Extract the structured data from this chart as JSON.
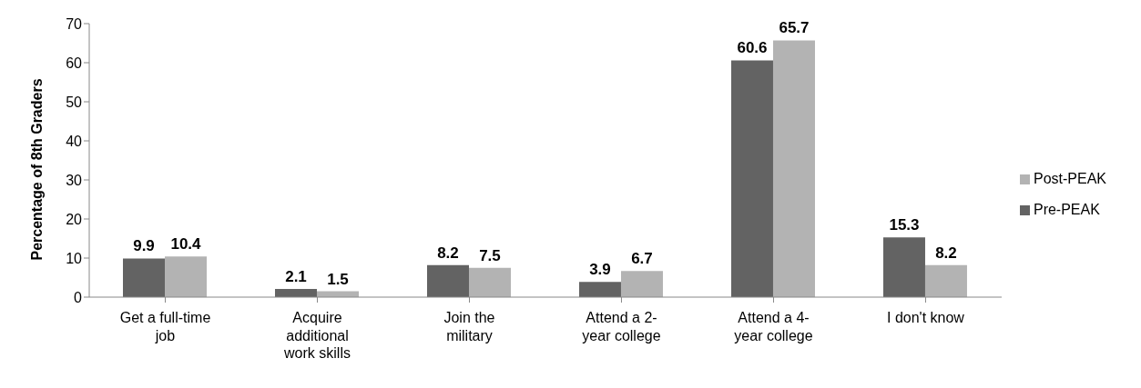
{
  "chart_data": {
    "type": "bar",
    "ylabel": "Percentage of 8th Graders",
    "categories": [
      "Get a full-time job",
      "Acquire additional work skills",
      "Join the military",
      "Attend a 2-year college",
      "Attend a 4-year college",
      "I don't know"
    ],
    "series": [
      {
        "name": "Pre-PEAK",
        "color": "#636363",
        "values": [
          9.9,
          2.1,
          8.2,
          3.9,
          60.6,
          15.3
        ]
      },
      {
        "name": "Post-PEAK",
        "color": "#b3b3b3",
        "values": [
          10.4,
          1.5,
          7.5,
          6.7,
          65.7,
          8.2
        ]
      }
    ],
    "ylim": [
      0,
      70
    ],
    "yticks": [
      0,
      10,
      20,
      30,
      40,
      50,
      60,
      70
    ],
    "grid": false,
    "legend": "right",
    "data_labels": true
  }
}
